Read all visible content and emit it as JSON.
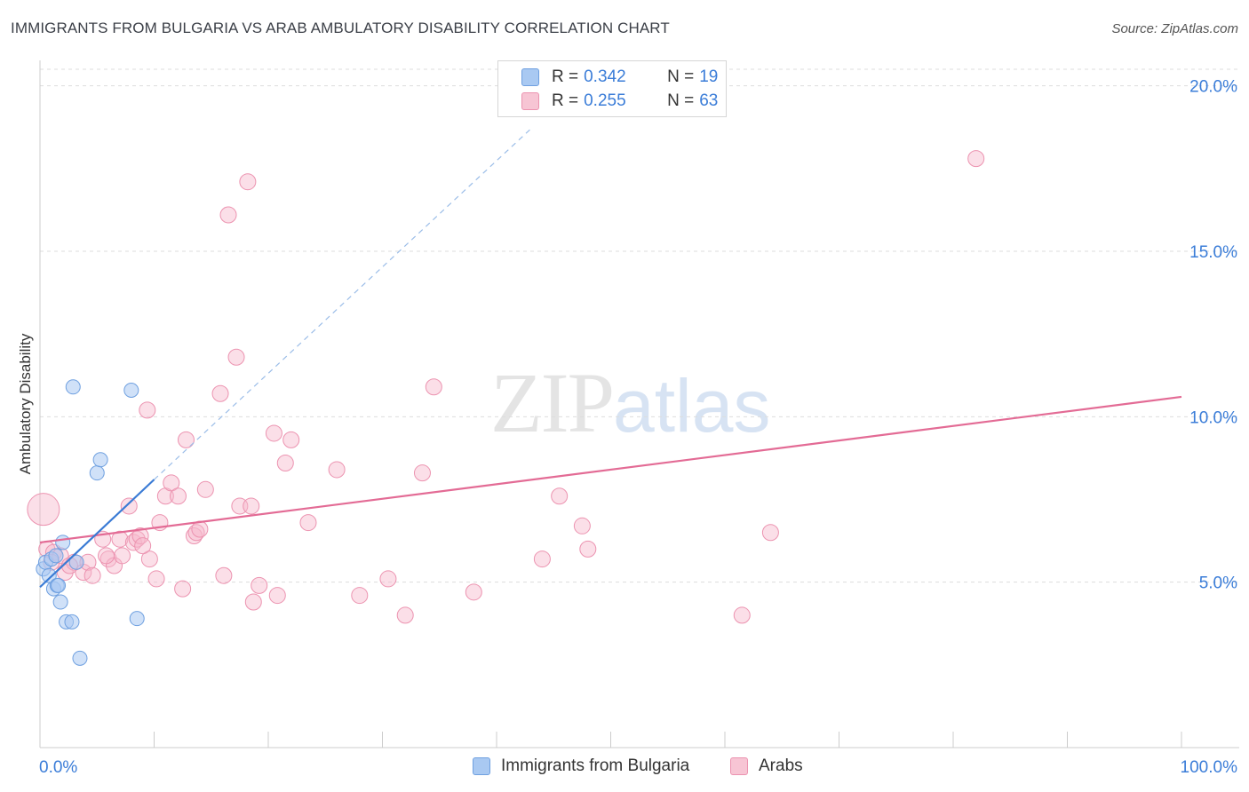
{
  "title": "IMMIGRANTS FROM BULGARIA VS ARAB AMBULATORY DISABILITY CORRELATION CHART",
  "source": "Source: ZipAtlas.com",
  "watermark": {
    "zip": "ZIP",
    "atlas": "atlas"
  },
  "legend": {
    "rows": [
      {
        "r_label": "R = ",
        "r_value": "0.342",
        "n_label": "N = ",
        "n_value": "19"
      },
      {
        "r_label": "R = ",
        "r_value": "0.255",
        "n_label": "N = ",
        "n_value": "63"
      }
    ]
  },
  "bottom_legend": [
    "Immigrants from Bulgaria",
    "Arabs"
  ],
  "colors": {
    "blue_fill": "#a9c9f2",
    "blue_stroke": "#6fa0e0",
    "blue_line": "#3a7bd5",
    "pink_fill": "#f7b9cb",
    "pink_stroke": "#ec93b0",
    "pink_line": "#e36b95",
    "axis_label": "#3b7dd8",
    "grid": "#dddddd"
  },
  "chart_data": {
    "type": "scatter",
    "title": "IMMIGRANTS FROM BULGARIA VS ARAB AMBULATORY DISABILITY CORRELATION CHART",
    "xlabel": "",
    "ylabel": "Ambulatory Disability",
    "xlim": [
      0,
      100
    ],
    "ylim": [
      0,
      20.5
    ],
    "x_tick_labels": [
      "0.0%",
      "100.0%"
    ],
    "y_ticks": [
      5,
      10,
      15,
      20
    ],
    "y_tick_labels": [
      "5.0%",
      "10.0%",
      "15.0%",
      "20.0%"
    ],
    "series": [
      {
        "name": "Immigrants from Bulgaria",
        "R": 0.342,
        "N": 19,
        "trend": {
          "x0": 0,
          "y0": 4.85,
          "x1": 10,
          "y1": 8.1,
          "extend_to_x": 43,
          "extend_to_y": 18.7
        },
        "points": [
          {
            "x": 0.3,
            "y": 5.4
          },
          {
            "x": 0.5,
            "y": 5.6
          },
          {
            "x": 0.8,
            "y": 5.2
          },
          {
            "x": 1.0,
            "y": 5.7
          },
          {
            "x": 1.2,
            "y": 4.8
          },
          {
            "x": 1.5,
            "y": 4.9
          },
          {
            "x": 1.6,
            "y": 4.9
          },
          {
            "x": 1.8,
            "y": 4.4
          },
          {
            "x": 2.0,
            "y": 6.2
          },
          {
            "x": 2.3,
            "y": 3.8
          },
          {
            "x": 2.8,
            "y": 3.8
          },
          {
            "x": 3.5,
            "y": 2.7
          },
          {
            "x": 5.0,
            "y": 8.3
          },
          {
            "x": 5.3,
            "y": 8.7
          },
          {
            "x": 2.9,
            "y": 10.9
          },
          {
            "x": 8.0,
            "y": 10.8
          },
          {
            "x": 8.5,
            "y": 3.9
          },
          {
            "x": 3.2,
            "y": 5.6
          },
          {
            "x": 1.4,
            "y": 5.8
          }
        ]
      },
      {
        "name": "Arabs",
        "R": 0.255,
        "N": 63,
        "trend": {
          "x0": 0,
          "y0": 6.2,
          "x1": 100,
          "y1": 10.6
        },
        "points": [
          {
            "x": 0.3,
            "y": 7.2
          },
          {
            "x": 0.6,
            "y": 6.0
          },
          {
            "x": 1.2,
            "y": 5.9
          },
          {
            "x": 1.8,
            "y": 5.8
          },
          {
            "x": 2.2,
            "y": 5.3
          },
          {
            "x": 3.0,
            "y": 5.6
          },
          {
            "x": 3.8,
            "y": 5.3
          },
          {
            "x": 4.2,
            "y": 5.6
          },
          {
            "x": 4.6,
            "y": 5.2
          },
          {
            "x": 5.5,
            "y": 6.3
          },
          {
            "x": 6.0,
            "y": 5.7
          },
          {
            "x": 6.5,
            "y": 5.5
          },
          {
            "x": 7.0,
            "y": 6.3
          },
          {
            "x": 7.2,
            "y": 5.8
          },
          {
            "x": 7.8,
            "y": 7.3
          },
          {
            "x": 8.2,
            "y": 6.2
          },
          {
            "x": 8.5,
            "y": 6.3
          },
          {
            "x": 8.8,
            "y": 6.4
          },
          {
            "x": 9.4,
            "y": 10.2
          },
          {
            "x": 9.6,
            "y": 5.7
          },
          {
            "x": 10.2,
            "y": 5.1
          },
          {
            "x": 10.5,
            "y": 6.8
          },
          {
            "x": 11.0,
            "y": 7.6
          },
          {
            "x": 11.5,
            "y": 8.0
          },
          {
            "x": 12.1,
            "y": 7.6
          },
          {
            "x": 12.5,
            "y": 4.8
          },
          {
            "x": 12.8,
            "y": 9.3
          },
          {
            "x": 13.5,
            "y": 6.4
          },
          {
            "x": 13.7,
            "y": 6.5
          },
          {
            "x": 14.5,
            "y": 7.8
          },
          {
            "x": 15.8,
            "y": 10.7
          },
          {
            "x": 16.1,
            "y": 5.2
          },
          {
            "x": 16.5,
            "y": 16.1
          },
          {
            "x": 17.2,
            "y": 11.8
          },
          {
            "x": 17.5,
            "y": 7.3
          },
          {
            "x": 18.5,
            "y": 7.3
          },
          {
            "x": 18.7,
            "y": 4.4
          },
          {
            "x": 19.2,
            "y": 4.9
          },
          {
            "x": 18.2,
            "y": 17.1
          },
          {
            "x": 20.5,
            "y": 9.5
          },
          {
            "x": 20.8,
            "y": 4.6
          },
          {
            "x": 21.5,
            "y": 8.6
          },
          {
            "x": 22.0,
            "y": 9.3
          },
          {
            "x": 23.5,
            "y": 6.8
          },
          {
            "x": 26.0,
            "y": 8.4
          },
          {
            "x": 28.0,
            "y": 4.6
          },
          {
            "x": 30.5,
            "y": 5.1
          },
          {
            "x": 32.0,
            "y": 4.0
          },
          {
            "x": 33.5,
            "y": 8.3
          },
          {
            "x": 34.5,
            "y": 10.9
          },
          {
            "x": 38.0,
            "y": 4.7
          },
          {
            "x": 44.0,
            "y": 5.7
          },
          {
            "x": 45.5,
            "y": 7.6
          },
          {
            "x": 47.5,
            "y": 6.7
          },
          {
            "x": 48.0,
            "y": 6.0
          },
          {
            "x": 61.5,
            "y": 4.0
          },
          {
            "x": 64.0,
            "y": 6.5
          },
          {
            "x": 82.0,
            "y": 17.8
          },
          {
            "x": 1.0,
            "y": 5.6
          },
          {
            "x": 2.6,
            "y": 5.5
          },
          {
            "x": 5.8,
            "y": 5.8
          },
          {
            "x": 9.0,
            "y": 6.1
          },
          {
            "x": 14.0,
            "y": 6.6
          }
        ]
      }
    ]
  }
}
